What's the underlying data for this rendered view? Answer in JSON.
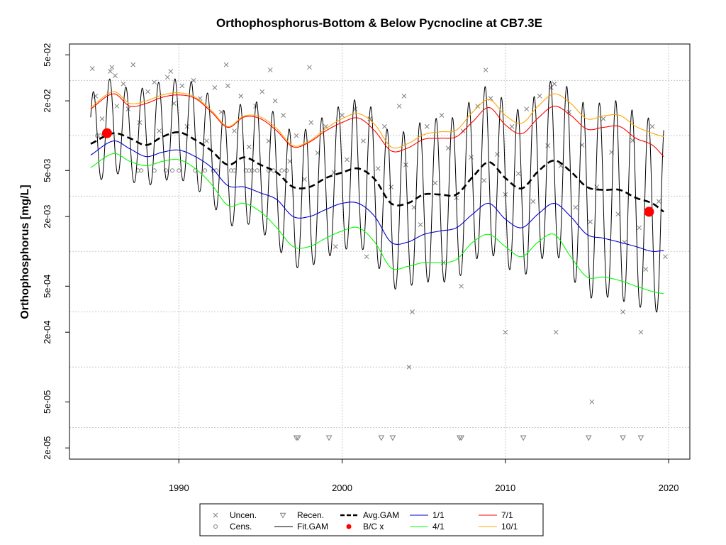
{
  "chart_data": {
    "type": "line",
    "title": "Orthophosphorus-Bottom & Below Pycnocline at CB7.3E",
    "ylabel": "Orthophosphorus [mg/L]",
    "xlabel": "",
    "y_scale": "log",
    "xlim": [
      1983.3,
      2021.3
    ],
    "ylim": [
      1.6e-05,
      0.062
    ],
    "x_ticks": [
      1990,
      2000,
      2010,
      2020
    ],
    "x_tick_labels": [
      "1990",
      "2000",
      "2010",
      "2020"
    ],
    "y_ticks": [
      2e-05,
      5e-05,
      0.0002,
      0.0005,
      0.002,
      0.005,
      0.02,
      0.05
    ],
    "y_tick_labels": [
      "2e-05",
      "5e-05",
      "2e-04",
      "5e-04",
      "2e-03",
      "5e-03",
      "2e-02",
      "5e-02"
    ],
    "grid_x": [
      1990,
      2000,
      2010,
      2020
    ],
    "grid_y": [
      3e-05,
      0.0001,
      0.0003,
      0.001,
      0.003,
      0.01,
      0.03
    ],
    "grid": true,
    "legend_position": "bottom",
    "legend": [
      {
        "label": "Uncen.",
        "symbol": "x",
        "color": "#7f7f7f"
      },
      {
        "label": "Recen.",
        "symbol": "triangle-down",
        "color": "#7f7f7f"
      },
      {
        "label": "Avg.GAM",
        "symbol": "dashed-line",
        "color": "#000000"
      },
      {
        "label": "1/1",
        "symbol": "line",
        "color": "#0000cd"
      },
      {
        "label": "7/1",
        "symbol": "line",
        "color": "#ff0000"
      },
      {
        "label": "Cens.",
        "symbol": "circle",
        "color": "#7f7f7f"
      },
      {
        "label": "Fit.GAM",
        "symbol": "line",
        "color": "#000000"
      },
      {
        "label": "B/C x",
        "symbol": "diamond",
        "color": "#ff0000"
      },
      {
        "label": "4/1",
        "symbol": "line",
        "color": "#00ff00"
      },
      {
        "label": "10/1",
        "symbol": "line",
        "color": "#ffa500"
      }
    ],
    "avg_gam": {
      "name": "Avg.GAM",
      "color": "#000000",
      "x": [
        1984.6,
        1986,
        1987,
        1988,
        1989,
        1990,
        1991,
        1992,
        1993,
        1994,
        1995,
        1996,
        1997,
        1998,
        1999,
        2000,
        2001,
        2002,
        2003,
        2004,
        2005,
        2006,
        2007,
        2008,
        2009,
        2010,
        2011,
        2012,
        2013,
        2014,
        2015,
        2016,
        2017,
        2018,
        2019,
        2019.7
      ],
      "y": [
        0.0085,
        0.0105,
        0.0095,
        0.0083,
        0.0098,
        0.0107,
        0.0092,
        0.0074,
        0.0056,
        0.0065,
        0.0056,
        0.0048,
        0.0036,
        0.0036,
        0.0043,
        0.0048,
        0.0052,
        0.0042,
        0.0026,
        0.0026,
        0.0031,
        0.0031,
        0.0031,
        0.0044,
        0.0059,
        0.0043,
        0.0035,
        0.0049,
        0.0061,
        0.0049,
        0.0036,
        0.0034,
        0.0034,
        0.0029,
        0.0026,
        0.0022
      ]
    },
    "season_curves": [
      {
        "name": "1/1",
        "color": "#0000cd",
        "x": [
          1984.6,
          1986,
          1987,
          1988,
          1989,
          1990,
          1991,
          1992,
          1993,
          1994,
          1995,
          1996,
          1997,
          1998,
          1999,
          2000,
          2001,
          2002,
          2003,
          2004,
          2005,
          2006,
          2007,
          2008,
          2009,
          2010,
          2011,
          2012,
          2013,
          2014,
          2015,
          2016,
          2017,
          2018,
          2019,
          2019.7
        ],
        "y": [
          0.0068,
          0.009,
          0.0077,
          0.0066,
          0.0072,
          0.0075,
          0.0066,
          0.0053,
          0.0037,
          0.0036,
          0.0032,
          0.0028,
          0.002,
          0.002,
          0.0023,
          0.0026,
          0.0026,
          0.002,
          0.0012,
          0.0012,
          0.0014,
          0.0015,
          0.0016,
          0.0021,
          0.0026,
          0.0019,
          0.0016,
          0.0021,
          0.0026,
          0.002,
          0.0014,
          0.0013,
          0.0012,
          0.0011,
          0.001,
          0.00102
        ]
      },
      {
        "name": "4/1",
        "color": "#00ff00",
        "x": [
          1984.6,
          1986,
          1987,
          1988,
          1989,
          1990,
          1991,
          1992,
          1993,
          1994,
          1995,
          1996,
          1997,
          1998,
          1999,
          2000,
          2001,
          2002,
          2003,
          2004,
          2005,
          2006,
          2007,
          2008,
          2009,
          2010,
          2011,
          2012,
          2013,
          2014,
          2015,
          2016,
          2017,
          2018,
          2019,
          2019.7
        ],
        "y": [
          0.0053,
          0.007,
          0.006,
          0.0055,
          0.006,
          0.0062,
          0.0052,
          0.0038,
          0.0025,
          0.0026,
          0.0022,
          0.0016,
          0.0011,
          0.0011,
          0.0013,
          0.0015,
          0.0016,
          0.0012,
          0.00072,
          0.00074,
          0.0008,
          0.0008,
          0.00085,
          0.0012,
          0.0014,
          0.0011,
          0.0009,
          0.0012,
          0.0014,
          0.0009,
          0.0006,
          0.0006,
          0.00056,
          0.0005,
          0.00045,
          0.00043
        ]
      },
      {
        "name": "7/1",
        "color": "#ff0000",
        "x": [
          1984.6,
          1986,
          1987,
          1988,
          1989,
          1990,
          1991,
          1992,
          1993,
          1994,
          1995,
          1996,
          1997,
          1998,
          1999,
          2000,
          2001,
          2002,
          2003,
          2004,
          2005,
          2006,
          2007,
          2008,
          2009,
          2010,
          2011,
          2012,
          2013,
          2014,
          2015,
          2016,
          2017,
          2018,
          2019,
          2019.7
        ],
        "y": [
          0.017,
          0.023,
          0.018,
          0.019,
          0.0215,
          0.0225,
          0.021,
          0.016,
          0.0118,
          0.0145,
          0.014,
          0.011,
          0.008,
          0.0088,
          0.011,
          0.013,
          0.0142,
          0.011,
          0.0074,
          0.0078,
          0.0093,
          0.0095,
          0.0098,
          0.0132,
          0.0175,
          0.0124,
          0.0104,
          0.0142,
          0.018,
          0.015,
          0.0114,
          0.0118,
          0.012,
          0.0095,
          0.0083,
          0.0066
        ]
      },
      {
        "name": "10/1",
        "color": "#ffa500",
        "x": [
          1984.6,
          1986,
          1987,
          1988,
          1989,
          1990,
          1991,
          1992,
          1993,
          1994,
          1995,
          1996,
          1997,
          1998,
          1999,
          2000,
          2001,
          2002,
          2003,
          2004,
          2005,
          2006,
          2007,
          2008,
          2009,
          2010,
          2011,
          2012,
          2013,
          2014,
          2015,
          2016,
          2017,
          2018,
          2019,
          2019.7
        ],
        "y": [
          0.0175,
          0.024,
          0.019,
          0.02,
          0.0225,
          0.0235,
          0.0215,
          0.0165,
          0.012,
          0.0148,
          0.0145,
          0.0115,
          0.0082,
          0.009,
          0.0115,
          0.014,
          0.0155,
          0.0125,
          0.008,
          0.0085,
          0.0102,
          0.0108,
          0.0112,
          0.016,
          0.0205,
          0.015,
          0.0128,
          0.018,
          0.023,
          0.019,
          0.014,
          0.0148,
          0.015,
          0.012,
          0.0105,
          0.0098
        ]
      }
    ],
    "fit_gam": {
      "name": "Fit.GAM",
      "color": "#000000",
      "seasonal": "annual oscillation between the 4/1 and 10/1 curves, low in early spring, high in early autumn",
      "x_range": [
        1984.6,
        2019.7
      ]
    },
    "uncensored": {
      "name": "Uncen.",
      "color": "#7f7f7f",
      "x": [
        1984.7,
        1984.9,
        1985.3,
        1985.8,
        1986.2,
        1986.6,
        1986.9,
        1987.2,
        1987.6,
        1988.1,
        1988.5,
        1988.8,
        1989.3,
        1989.7,
        1990.2,
        1990.5,
        1990.9,
        1991.3,
        1991.7,
        1992.2,
        1992.6,
        1993.0,
        1993.4,
        1993.8,
        1994.3,
        1994.7,
        1995.1,
        1995.5,
        1995.9,
        1996.4,
        1996.8,
        1997.2,
        1997.7,
        1998.1,
        1998.5,
        1999.0,
        1999.5,
        2000.0,
        2000.3,
        2000.8,
        2001.3,
        2001.7,
        2002.2,
        2002.6,
        2003.0,
        2003.5,
        2003.9,
        2004.4,
        2004.8,
        2005.2,
        2005.7,
        2006.1,
        2006.5,
        2007.0,
        2007.4,
        2007.9,
        2008.3,
        2008.7,
        2009.1,
        2009.5,
        2010.0,
        2010.4,
        2010.8,
        2011.3,
        2011.7,
        2012.1,
        2012.6,
        2013.0,
        2013.4,
        2013.9,
        2014.3,
        2014.7,
        2015.2,
        2015.6,
        2016.0,
        2016.5,
        2016.9,
        2017.3,
        2017.8,
        2018.2,
        2018.6,
        2019.0,
        2019.4,
        2019.8,
        1985.9,
        1986.1,
        1989.5,
        1992.9,
        1995.6,
        1998.0,
        2004.3,
        2004.1,
        2010.0,
        2013.1,
        2015.3,
        2017.2,
        2018.3,
        2008.8,
        2012.8,
        2003.8,
        2007.3,
        2006.2,
        2001.5,
        1999.6
      ],
      "y": [
        0.038,
        0.022,
        0.014,
        0.036,
        0.018,
        0.028,
        0.017,
        0.041,
        0.013,
        0.024,
        0.029,
        0.011,
        0.032,
        0.019,
        0.027,
        0.012,
        0.03,
        0.021,
        0.009,
        0.026,
        0.016,
        0.027,
        0.011,
        0.022,
        0.008,
        0.018,
        0.024,
        0.009,
        0.02,
        0.015,
        0.006,
        0.01,
        0.0042,
        0.013,
        0.0071,
        0.012,
        0.0048,
        0.015,
        0.0062,
        0.017,
        0.009,
        0.014,
        0.0052,
        0.012,
        0.0036,
        0.018,
        0.0056,
        0.0024,
        0.0017,
        0.012,
        0.0039,
        0.015,
        0.0078,
        0.0029,
        0.011,
        0.0065,
        0.018,
        0.0041,
        0.021,
        0.0069,
        0.0031,
        0.012,
        0.0047,
        0.017,
        0.0027,
        0.022,
        0.0082,
        0.028,
        0.0055,
        0.016,
        0.0024,
        0.0083,
        0.0018,
        0.0036,
        0.014,
        0.0072,
        0.0021,
        0.0012,
        0.0091,
        0.0016,
        0.0007,
        0.012,
        0.0027,
        0.0009,
        0.039,
        0.033,
        0.036,
        0.041,
        0.037,
        0.039,
        0.0003,
        0.0001,
        0.0002,
        0.0002,
        5e-05,
        0.0003,
        0.0002,
        0.037,
        0.026,
        0.022,
        0.0005,
        0.0008,
        0.0009,
        0.0011
      ]
    },
    "censored": {
      "name": "Cens.",
      "color": "#7f7f7f",
      "x": [
        1985.0,
        1985.2,
        1985.4,
        1987.5,
        1987.7,
        1988.5,
        1989.2,
        1989.6,
        1990.0,
        1991.0,
        1991.6,
        1992.1,
        1992.3,
        1993.2,
        1993.4,
        1994.1,
        1994.3,
        1994.5,
        1994.8,
        1995.5,
        1995.8,
        1996.3,
        1996.6
      ],
      "y": [
        0.01,
        0.01,
        0.01,
        0.005,
        0.005,
        0.005,
        0.005,
        0.005,
        0.005,
        0.005,
        0.005,
        0.005,
        0.005,
        0.005,
        0.005,
        0.005,
        0.005,
        0.005,
        0.005,
        0.005,
        0.005,
        0.005,
        0.005
      ]
    },
    "recensored": {
      "name": "Recen.",
      "color": "#7f7f7f",
      "x": [
        1997.2,
        1997.3,
        1999.2,
        2002.4,
        2003.1,
        2007.2,
        2007.3,
        2011.1,
        2015.1,
        2017.2,
        2018.3
      ],
      "y": [
        2.45e-05,
        2.45e-05,
        2.45e-05,
        2.45e-05,
        2.45e-05,
        2.45e-05,
        2.45e-05,
        2.45e-05,
        2.45e-05,
        2.45e-05,
        2.45e-05
      ]
    },
    "bc_points": {
      "name": "B/C x",
      "color": "#ff0000",
      "x": [
        1985.6,
        2018.8
      ],
      "y": [
        0.0105,
        0.0022
      ]
    }
  }
}
